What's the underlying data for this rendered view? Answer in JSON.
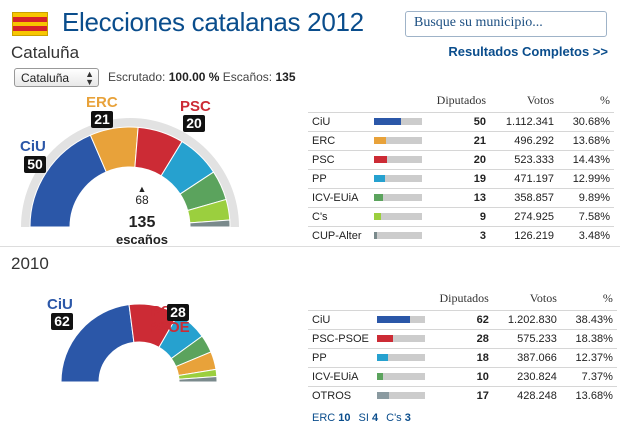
{
  "header": {
    "title": "Elecciones catalanas 2012",
    "search_placeholder": "Busque su municipio...",
    "region": "Cataluña",
    "full_results_link": "Resultados Completos >>"
  },
  "filter": {
    "selected": "Cataluña",
    "scrutiny_label": "Escrutado:",
    "scrutiny_value": "100.00 %",
    "seats_label": "Escaños:",
    "seats_value": "135"
  },
  "colors": {
    "CiU": "#2b57a8",
    "ERC": "#e8a23a",
    "PSC": "#cc2b35",
    "PP": "#26a1cf",
    "ICV-EUiA": "#5ba35d",
    "Cs": "#9bcf3e",
    "CUP": "#7a8a8c",
    "OTROS": "#8a9aa0"
  },
  "chart_2012": {
    "labels": {
      "ciu": {
        "name": "CiU",
        "seats": "50"
      },
      "erc": {
        "name": "ERC",
        "seats": "21"
      },
      "psc": {
        "name": "PSC",
        "seats": "20"
      }
    },
    "majority": "68",
    "total_seats": "135",
    "total_label": "escaños",
    "seats": [
      50,
      21,
      20,
      19,
      13,
      9,
      3
    ]
  },
  "table_2012": {
    "headers": {
      "diputados": "Diputados",
      "votos": "Votos",
      "pct": "%"
    },
    "rows": [
      {
        "name": "CiU",
        "seats": "50",
        "votes": "1.112.341",
        "pct": "30.68%",
        "share": 0.3068,
        "color": "#2b57a8"
      },
      {
        "name": "ERC",
        "seats": "21",
        "votes": "496.292",
        "pct": "13.68%",
        "share": 0.1368,
        "color": "#e8a23a"
      },
      {
        "name": "PSC",
        "seats": "20",
        "votes": "523.333",
        "pct": "14.43%",
        "share": 0.1443,
        "color": "#cc2b35"
      },
      {
        "name": "PP",
        "seats": "19",
        "votes": "471.197",
        "pct": "12.99%",
        "share": 0.1299,
        "color": "#26a1cf"
      },
      {
        "name": "ICV-EUiA",
        "seats": "13",
        "votes": "358.857",
        "pct": "9.89%",
        "share": 0.0989,
        "color": "#5ba35d"
      },
      {
        "name": "C's",
        "seats": "9",
        "votes": "274.925",
        "pct": "7.58%",
        "share": 0.0758,
        "color": "#9bcf3e"
      },
      {
        "name": "CUP-Alter",
        "seats": "3",
        "votes": "126.219",
        "pct": "3.48%",
        "share": 0.0348,
        "color": "#7a8a8c"
      }
    ]
  },
  "section_2010": {
    "year": "2010",
    "labels": {
      "ciu": {
        "name": "CiU",
        "seats": "62"
      },
      "psc": {
        "name": "PSC-\nPSOE",
        "seats": "28"
      }
    },
    "seats": [
      62,
      28,
      18,
      10,
      10,
      4,
      3
    ]
  },
  "table_2010": {
    "headers": {
      "diputados": "Diputados",
      "votos": "Votos",
      "pct": "%"
    },
    "rows": [
      {
        "name": "CiU",
        "seats": "62",
        "votes": "1.202.830",
        "pct": "38.43%",
        "share": 0.3843,
        "color": "#2b57a8"
      },
      {
        "name": "PSC-PSOE",
        "seats": "28",
        "votes": "575.233",
        "pct": "18.38%",
        "share": 0.1838,
        "color": "#cc2b35"
      },
      {
        "name": "PP",
        "seats": "18",
        "votes": "387.066",
        "pct": "12.37%",
        "share": 0.1237,
        "color": "#26a1cf"
      },
      {
        "name": "ICV-EUiA",
        "seats": "10",
        "votes": "230.824",
        "pct": "7.37%",
        "share": 0.0737,
        "color": "#5ba35d"
      },
      {
        "name": "OTROS",
        "seats": "17",
        "votes": "428.248",
        "pct": "13.68%",
        "share": 0.1368,
        "color": "#8a9aa0"
      }
    ],
    "others": [
      {
        "name": "ERC",
        "seats": "10"
      },
      {
        "name": "SI",
        "seats": "4"
      },
      {
        "name": "C's",
        "seats": "3"
      }
    ]
  }
}
